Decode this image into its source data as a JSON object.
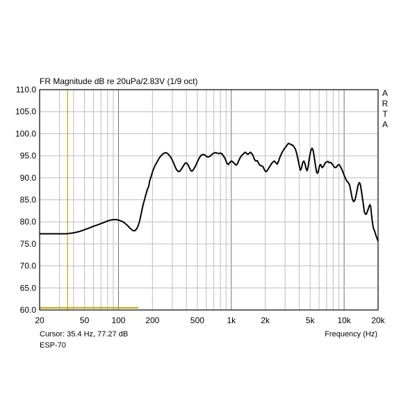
{
  "chart_data": {
    "type": "line",
    "title": "FR Magnitude dB re 20uPa/2.83V (1/9 oct)",
    "brand": [
      "A",
      "R",
      "T",
      "A"
    ],
    "xlabel": "Frequency (Hz)",
    "ylabel": "",
    "x_scale": "log",
    "xlim": [
      20,
      20000
    ],
    "ylim": [
      60,
      110
    ],
    "y_ticks": [
      110,
      105,
      100,
      95,
      90,
      85,
      80,
      75,
      70,
      65,
      60
    ],
    "y_tick_labels": [
      "110.0",
      "105.0",
      "100.0",
      "95.0",
      "90.0",
      "85.0",
      "80.0",
      "75.0",
      "70.0",
      "65.0",
      "60.0"
    ],
    "x_ticks": [
      20,
      50,
      100,
      200,
      500,
      1000,
      2000,
      5000,
      10000,
      20000
    ],
    "x_tick_labels": [
      "20",
      "50",
      "100",
      "200",
      "500",
      "1k",
      "2k",
      "5k",
      "10k",
      "20k"
    ],
    "grid": true,
    "cursor": {
      "x": 35.4,
      "y": 77.27,
      "color": "#c8a400",
      "label": "Cursor: 35.4 Hz, 77.27 dB"
    },
    "marker_line": {
      "x_start": 20,
      "x_end": 150,
      "y": 60.5,
      "color": "#c8a400"
    },
    "model": "ESP-70",
    "series": [
      {
        "color": "#000000",
        "points": [
          [
            20,
            77.3
          ],
          [
            25,
            77.3
          ],
          [
            30,
            77.3
          ],
          [
            35,
            77.3
          ],
          [
            40,
            77.5
          ],
          [
            45,
            77.8
          ],
          [
            50,
            78.2
          ],
          [
            55,
            78.6
          ],
          [
            60,
            79.0
          ],
          [
            65,
            79.3
          ],
          [
            70,
            79.6
          ],
          [
            75,
            79.9
          ],
          [
            80,
            80.2
          ],
          [
            85,
            80.4
          ],
          [
            90,
            80.5
          ],
          [
            95,
            80.5
          ],
          [
            100,
            80.4
          ],
          [
            105,
            80.2
          ],
          [
            110,
            80.0
          ],
          [
            115,
            79.6
          ],
          [
            120,
            79.2
          ],
          [
            125,
            78.7
          ],
          [
            130,
            78.3
          ],
          [
            135,
            78.0
          ],
          [
            140,
            78.0
          ],
          [
            145,
            78.4
          ],
          [
            150,
            79.2
          ],
          [
            155,
            80.5
          ],
          [
            160,
            82.2
          ],
          [
            165,
            83.8
          ],
          [
            170,
            85.0
          ],
          [
            175,
            86.2
          ],
          [
            180,
            87.3
          ],
          [
            185,
            88.0
          ],
          [
            190,
            89.5
          ],
          [
            195,
            90.3
          ],
          [
            200,
            91.3
          ],
          [
            210,
            92.7
          ],
          [
            220,
            93.6
          ],
          [
            230,
            94.5
          ],
          [
            240,
            95.1
          ],
          [
            250,
            95.5
          ],
          [
            260,
            95.7
          ],
          [
            270,
            95.6
          ],
          [
            280,
            95.2
          ],
          [
            290,
            94.7
          ],
          [
            300,
            94.0
          ],
          [
            310,
            93.2
          ],
          [
            320,
            92.3
          ],
          [
            330,
            91.7
          ],
          [
            340,
            91.4
          ],
          [
            350,
            91.5
          ],
          [
            360,
            91.9
          ],
          [
            370,
            92.4
          ],
          [
            380,
            92.9
          ],
          [
            390,
            93.3
          ],
          [
            400,
            93.4
          ],
          [
            410,
            93.1
          ],
          [
            420,
            92.6
          ],
          [
            430,
            92.0
          ],
          [
            440,
            91.6
          ],
          [
            450,
            91.5
          ],
          [
            460,
            91.8
          ],
          [
            480,
            92.6
          ],
          [
            500,
            93.6
          ],
          [
            520,
            94.5
          ],
          [
            540,
            95.1
          ],
          [
            560,
            95.3
          ],
          [
            580,
            95.2
          ],
          [
            600,
            94.9
          ],
          [
            620,
            94.7
          ],
          [
            650,
            94.9
          ],
          [
            680,
            95.4
          ],
          [
            700,
            95.6
          ],
          [
            720,
            95.7
          ],
          [
            750,
            95.6
          ],
          [
            780,
            95.5
          ],
          [
            800,
            95.6
          ],
          [
            820,
            95.5
          ],
          [
            850,
            95.0
          ],
          [
            880,
            94.4
          ],
          [
            900,
            93.7
          ],
          [
            920,
            93.2
          ],
          [
            940,
            93.0
          ],
          [
            960,
            93.3
          ],
          [
            980,
            93.6
          ],
          [
            1000,
            93.8
          ],
          [
            1020,
            93.7
          ],
          [
            1050,
            93.4
          ],
          [
            1080,
            93.1
          ],
          [
            1100,
            92.9
          ],
          [
            1130,
            93.1
          ],
          [
            1160,
            93.8
          ],
          [
            1200,
            94.6
          ],
          [
            1250,
            95.2
          ],
          [
            1300,
            95.6
          ],
          [
            1330,
            95.8
          ],
          [
            1360,
            95.6
          ],
          [
            1400,
            95.3
          ],
          [
            1450,
            95.6
          ],
          [
            1480,
            95.8
          ],
          [
            1520,
            95.5
          ],
          [
            1560,
            95.0
          ],
          [
            1600,
            94.2
          ],
          [
            1650,
            93.8
          ],
          [
            1700,
            93.9
          ],
          [
            1750,
            93.2
          ],
          [
            1800,
            92.8
          ],
          [
            1850,
            92.7
          ],
          [
            1900,
            92.6
          ],
          [
            1950,
            92.0
          ],
          [
            2000,
            91.5
          ],
          [
            2050,
            91.4
          ],
          [
            2100,
            91.8
          ],
          [
            2150,
            92.2
          ],
          [
            2200,
            92.6
          ],
          [
            2300,
            93.4
          ],
          [
            2400,
            93.8
          ],
          [
            2450,
            93.6
          ],
          [
            2500,
            93.3
          ],
          [
            2550,
            93.1
          ],
          [
            2600,
            93.5
          ],
          [
            2700,
            94.7
          ],
          [
            2800,
            95.6
          ],
          [
            2900,
            96.3
          ],
          [
            3000,
            96.8
          ],
          [
            3100,
            97.3
          ],
          [
            3200,
            97.8
          ],
          [
            3300,
            97.7
          ],
          [
            3400,
            97.5
          ],
          [
            3500,
            97.4
          ],
          [
            3600,
            97.0
          ],
          [
            3700,
            96.5
          ],
          [
            3800,
            95.5
          ],
          [
            3900,
            94.2
          ],
          [
            4000,
            92.8
          ],
          [
            4100,
            91.7
          ],
          [
            4200,
            92.3
          ],
          [
            4300,
            93.5
          ],
          [
            4400,
            93.8
          ],
          [
            4500,
            93.2
          ],
          [
            4600,
            92.1
          ],
          [
            4700,
            91.6
          ],
          [
            4800,
            92.5
          ],
          [
            4900,
            94.2
          ],
          [
            5000,
            95.5
          ],
          [
            5100,
            96.4
          ],
          [
            5200,
            96.7
          ],
          [
            5300,
            96.3
          ],
          [
            5400,
            95.2
          ],
          [
            5500,
            93.8
          ],
          [
            5600,
            92.4
          ],
          [
            5700,
            91.3
          ],
          [
            5800,
            91.0
          ],
          [
            5900,
            91.4
          ],
          [
            6000,
            92.3
          ],
          [
            6100,
            92.9
          ],
          [
            6200,
            93.0
          ],
          [
            6300,
            92.6
          ],
          [
            6400,
            92.3
          ],
          [
            6600,
            92.7
          ],
          [
            6800,
            93.4
          ],
          [
            7000,
            93.6
          ],
          [
            7200,
            93.7
          ],
          [
            7400,
            93.4
          ],
          [
            7600,
            93.5
          ],
          [
            7800,
            93.2
          ],
          [
            8000,
            92.8
          ],
          [
            8200,
            92.4
          ],
          [
            8400,
            92.3
          ],
          [
            8600,
            92.5
          ],
          [
            8800,
            92.9
          ],
          [
            9000,
            93.0
          ],
          [
            9200,
            92.7
          ],
          [
            9500,
            92.0
          ],
          [
            9800,
            91.2
          ],
          [
            10000,
            90.6
          ],
          [
            10300,
            89.8
          ],
          [
            10600,
            89.2
          ],
          [
            10900,
            88.9
          ],
          [
            11200,
            88.3
          ],
          [
            11500,
            86.8
          ],
          [
            11800,
            85.3
          ],
          [
            12100,
            84.6
          ],
          [
            12400,
            84.8
          ],
          [
            12700,
            85.7
          ],
          [
            13000,
            87.1
          ],
          [
            13300,
            88.3
          ],
          [
            13600,
            88.9
          ],
          [
            13900,
            88.6
          ],
          [
            14200,
            87.2
          ],
          [
            14500,
            85.6
          ],
          [
            14800,
            84.0
          ],
          [
            15100,
            82.3
          ],
          [
            15400,
            81.8
          ],
          [
            15700,
            81.7
          ],
          [
            16000,
            82.2
          ],
          [
            16300,
            82.8
          ],
          [
            16600,
            83.4
          ],
          [
            16900,
            83.9
          ],
          [
            17200,
            83.5
          ],
          [
            17500,
            81.6
          ],
          [
            17800,
            80.0
          ],
          [
            18100,
            78.8
          ],
          [
            18400,
            78.2
          ],
          [
            18700,
            77.8
          ],
          [
            19000,
            77.2
          ],
          [
            19400,
            76.5
          ],
          [
            19800,
            75.9
          ],
          [
            20000,
            75.6
          ]
        ]
      }
    ]
  }
}
